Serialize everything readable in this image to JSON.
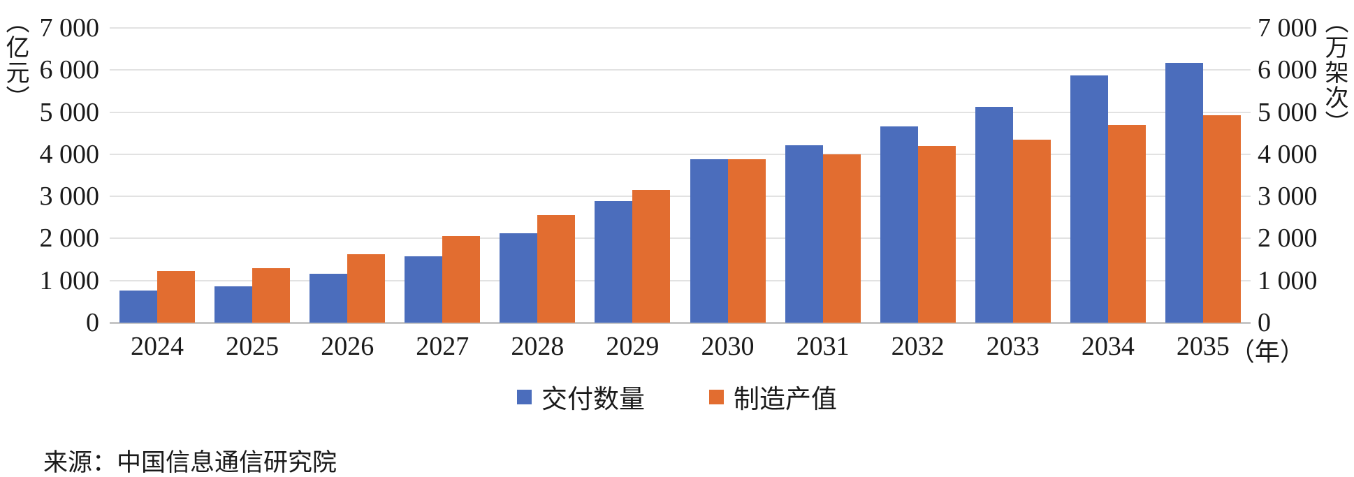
{
  "chart_data": {
    "type": "bar",
    "categories": [
      "2024",
      "2025",
      "2026",
      "2027",
      "2028",
      "2029",
      "2030",
      "2031",
      "2032",
      "2033",
      "2034",
      "2035"
    ],
    "series": [
      {
        "name": "交付数量",
        "color": "#4B6DBC",
        "values": [
          760,
          860,
          1160,
          1570,
          2130,
          2880,
          3880,
          4220,
          4660,
          5130,
          5870,
          6170
        ]
      },
      {
        "name": "制造产值",
        "color": "#E26D30",
        "values": [
          1220,
          1290,
          1630,
          2050,
          2560,
          3160,
          3880,
          4000,
          4200,
          4350,
          4700,
          4930
        ]
      }
    ],
    "left_axis": {
      "unit": "（亿元）",
      "max": 7000,
      "min": 0,
      "ticks": [
        {
          "v": 7000,
          "label": "7 000"
        },
        {
          "v": 6000,
          "label": "6 000"
        },
        {
          "v": 5000,
          "label": "5 000"
        },
        {
          "v": 4000,
          "label": "4 000"
        },
        {
          "v": 3000,
          "label": "3 000"
        },
        {
          "v": 2000,
          "label": "2 000"
        },
        {
          "v": 1000,
          "label": "1 000"
        },
        {
          "v": 0,
          "label": "0"
        }
      ]
    },
    "right_axis": {
      "unit": "（万架次）",
      "max": 7000,
      "min": 0,
      "ticks": [
        {
          "v": 7000,
          "label": "7 000"
        },
        {
          "v": 6000,
          "label": "6 000"
        },
        {
          "v": 5000,
          "label": "5 000"
        },
        {
          "v": 4000,
          "label": "4 000"
        },
        {
          "v": 3000,
          "label": "3 000"
        },
        {
          "v": 2000,
          "label": "2 000"
        },
        {
          "v": 1000,
          "label": "1 000"
        },
        {
          "v": 0,
          "label": "0"
        }
      ]
    },
    "x_axis_suffix": "（年）",
    "grid": true,
    "legend_position": "bottom",
    "title": "",
    "xlabel": "",
    "ylabel": ""
  },
  "legend": {
    "items": [
      {
        "label": "交付数量",
        "color": "#4B6DBC"
      },
      {
        "label": "制造产值",
        "color": "#E26D30"
      }
    ]
  },
  "source_note": "来源：中国信息通信研究院"
}
